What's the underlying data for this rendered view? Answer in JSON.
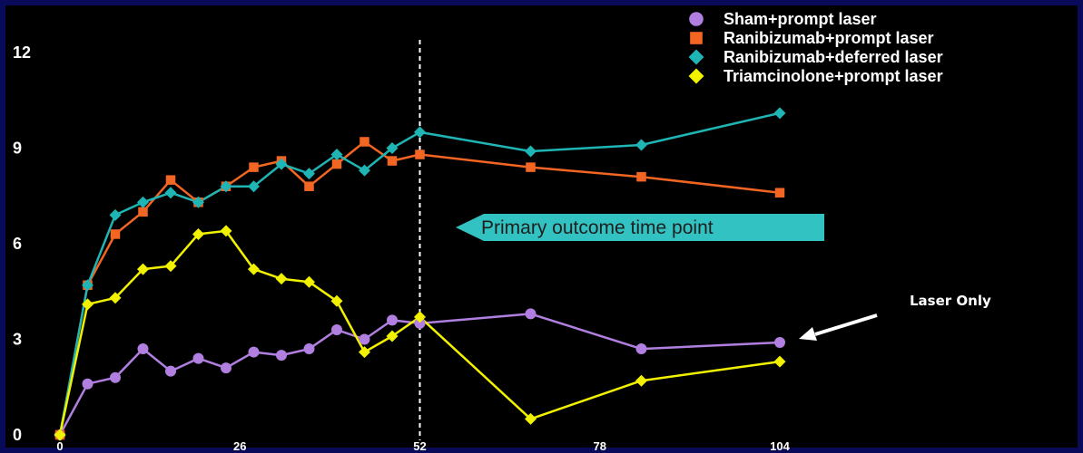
{
  "chart_data": {
    "type": "line",
    "x": [
      0,
      4,
      8,
      12,
      16,
      20,
      24,
      28,
      32,
      36,
      40,
      44,
      48,
      52,
      68,
      84,
      104
    ],
    "xticks": [
      "0",
      "26",
      "52",
      "78",
      "104"
    ],
    "xtick_values": [
      0,
      26,
      52,
      78,
      104
    ],
    "yticks": [
      "0",
      "3",
      "6",
      "9",
      "12"
    ],
    "ytick_values": [
      0,
      3,
      6,
      9,
      12
    ],
    "xlim": [
      0,
      104
    ],
    "ylim": [
      0,
      12
    ],
    "reference_line_x": 52,
    "legend_position": "top-right",
    "series": [
      {
        "name": "Sham+prompt laser",
        "color": "#b07fe0",
        "marker": "circle",
        "x": [
          0,
          4,
          8,
          12,
          16,
          20,
          24,
          28,
          32,
          36,
          40,
          44,
          48,
          52,
          68,
          84,
          104
        ],
        "values": [
          0,
          1.6,
          1.8,
          2.7,
          2.0,
          2.4,
          2.1,
          2.6,
          2.5,
          2.7,
          3.3,
          3.0,
          3.6,
          3.5,
          3.8,
          2.7,
          2.9
        ]
      },
      {
        "name": "Ranibizumab+prompt laser",
        "color": "#f26522",
        "marker": "square",
        "x": [
          0,
          4,
          8,
          12,
          16,
          20,
          24,
          28,
          32,
          36,
          40,
          44,
          48,
          52,
          68,
          84,
          104
        ],
        "values": [
          0,
          4.7,
          6.3,
          7.0,
          8.0,
          7.3,
          7.8,
          8.4,
          8.6,
          7.8,
          8.5,
          9.2,
          8.6,
          8.8,
          8.4,
          8.1,
          7.6
        ]
      },
      {
        "name": "Ranibizumab+deferred laser",
        "color": "#1fb5b5",
        "marker": "diamond",
        "x": [
          0,
          4,
          8,
          12,
          16,
          20,
          24,
          28,
          32,
          36,
          40,
          44,
          48,
          52,
          68,
          84,
          104
        ],
        "values": [
          0,
          4.7,
          6.9,
          7.3,
          7.6,
          7.3,
          7.8,
          7.8,
          8.5,
          8.2,
          8.8,
          8.3,
          9.0,
          9.5,
          8.9,
          9.1,
          10.1
        ]
      },
      {
        "name": "Triamcinolone+prompt laser",
        "color": "#f2f200",
        "marker": "diamond",
        "x": [
          0,
          4,
          8,
          12,
          16,
          20,
          24,
          28,
          32,
          36,
          40,
          44,
          48,
          52,
          68,
          84,
          104
        ],
        "values": [
          0,
          4.1,
          4.3,
          5.2,
          5.3,
          6.3,
          6.4,
          5.2,
          4.9,
          4.8,
          4.2,
          2.6,
          3.1,
          3.7,
          0.5,
          1.7,
          2.3
        ]
      }
    ],
    "annotations": {
      "primary_outcome": "Primary outcome time point",
      "laser_only": "Laser Only"
    }
  },
  "colors": {
    "background": "#000000",
    "border": "#0a0a5a",
    "arrow_fill": "#33c2c2",
    "text": "#ffffff"
  }
}
